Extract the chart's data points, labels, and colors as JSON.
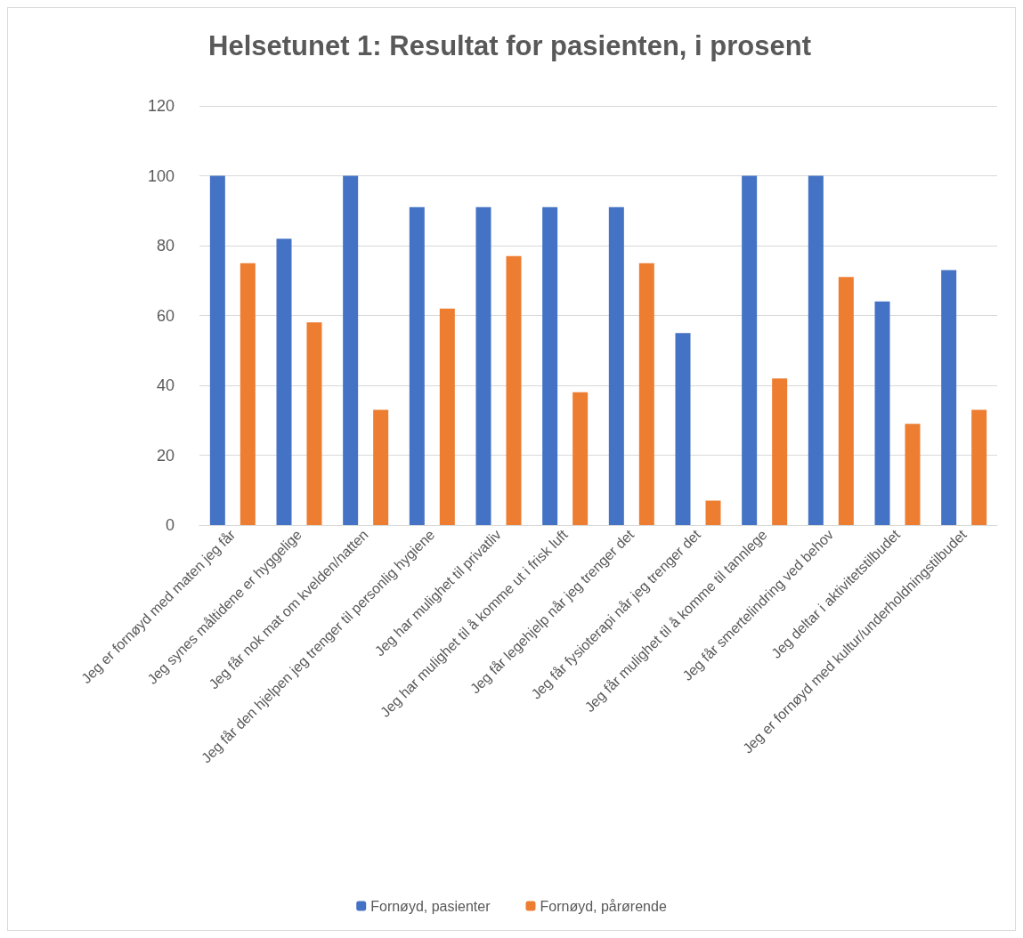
{
  "chart_data": {
    "type": "bar",
    "title": "Helsetunet 1: Resultat for pasienten, i prosent",
    "categories": [
      "Jeg er fornøyd med maten jeg får",
      "Jeg synes måltidene er hyggelige",
      "Jeg får nok mat om kvelden/natten",
      "Jeg får den hjelpen jeg trenger til personlig hygiene",
      "Jeg har mulighet til privatliv",
      "Jeg har mulighet til å komme ut i frisk luft",
      "Jeg får legehjelp når jeg trenger det",
      "Jeg får fysioterapi når jeg trenger det",
      "Jeg får mulighet til å komme til tannlege",
      "Jeg får smertelindring ved behov",
      "Jeg deltar i aktivitetstilbudet",
      "Jeg er fornøyd med kultur/underholdningstilbudet"
    ],
    "series": [
      {
        "name": "Fornøyd, pasienter",
        "color": "#4472c4",
        "values": [
          100,
          82,
          100,
          91,
          91,
          91,
          91,
          55,
          100,
          100,
          64,
          73
        ]
      },
      {
        "name": "Fornøyd, pårørende",
        "color": "#ed7d31",
        "values": [
          75,
          58,
          33,
          62,
          77,
          38,
          75,
          7,
          42,
          71,
          29,
          33
        ]
      }
    ],
    "ylim": [
      0,
      120
    ],
    "yticks": [
      0,
      20,
      40,
      60,
      80,
      100,
      120
    ],
    "grid": "y",
    "legend": "bottom"
  }
}
